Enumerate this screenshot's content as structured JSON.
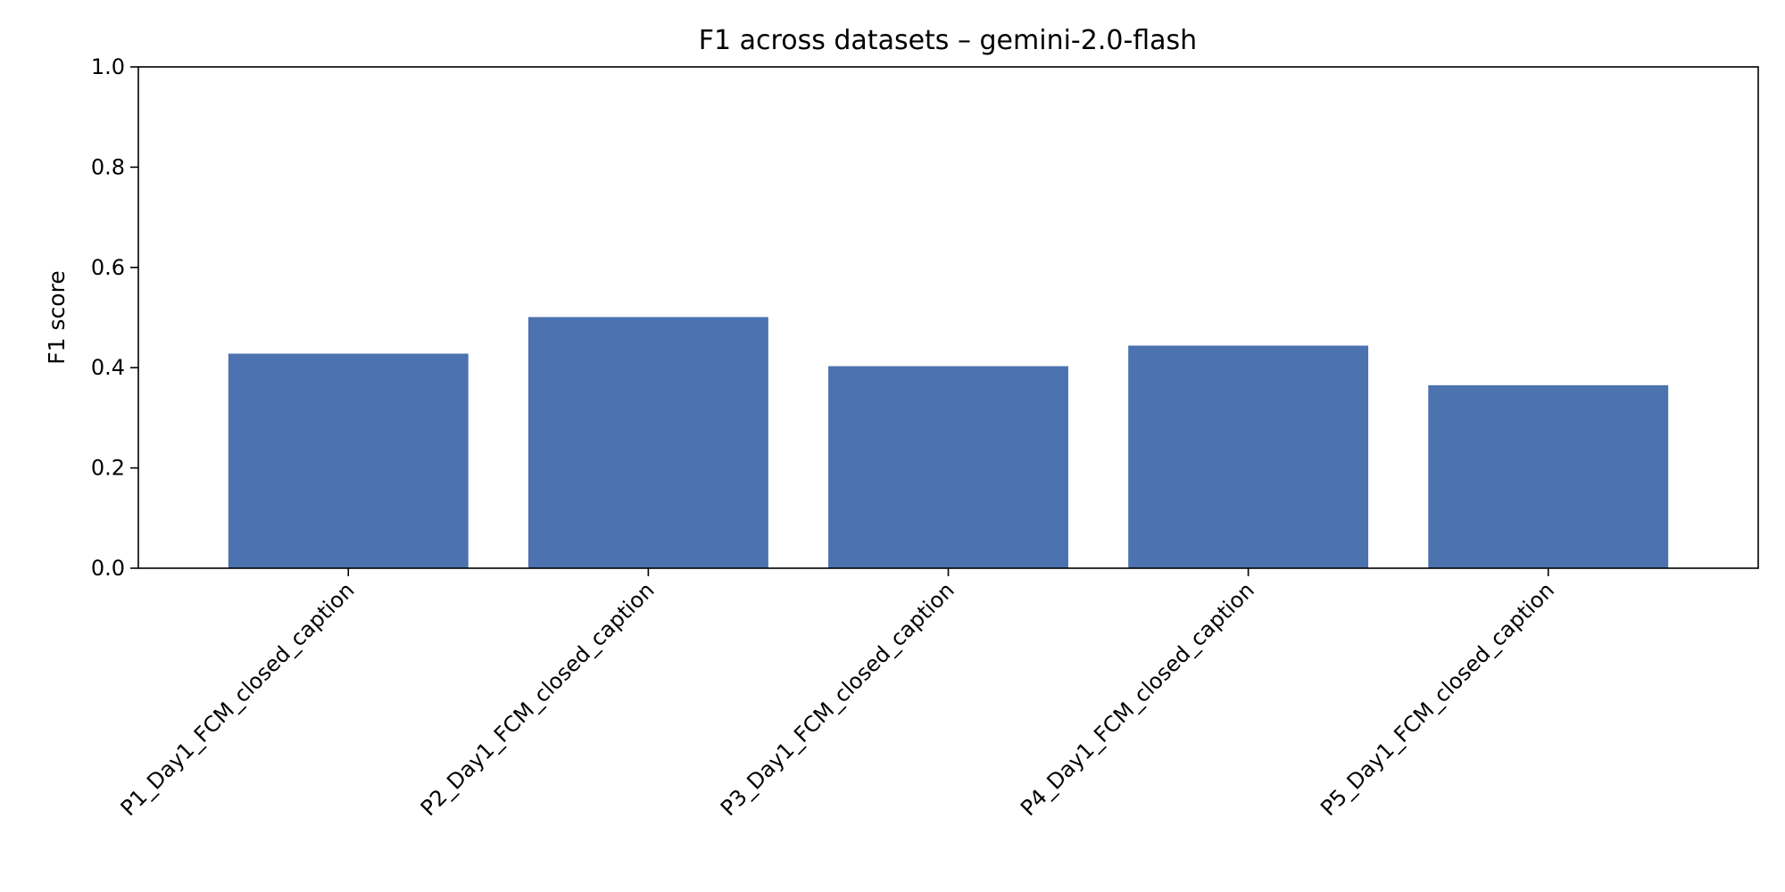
{
  "chart_data": {
    "type": "bar",
    "title": "F1 across datasets – gemini-2.0-flash",
    "xlabel": "",
    "ylabel": "F1 score",
    "ylim": [
      0,
      1
    ],
    "yticks": [
      "0.0",
      "0.2",
      "0.4",
      "0.6",
      "0.8",
      "1.0"
    ],
    "categories": [
      "P1_Day1_FCM_closed_caption",
      "P2_Day1_FCM_closed_caption",
      "P3_Day1_FCM_closed_caption",
      "P4_Day1_FCM_closed_caption",
      "P5_Day1_FCM_closed_caption"
    ],
    "values": [
      0.428,
      0.501,
      0.403,
      0.444,
      0.365
    ],
    "bar_color": "#4c72b0",
    "grid": false,
    "legend": "none"
  }
}
